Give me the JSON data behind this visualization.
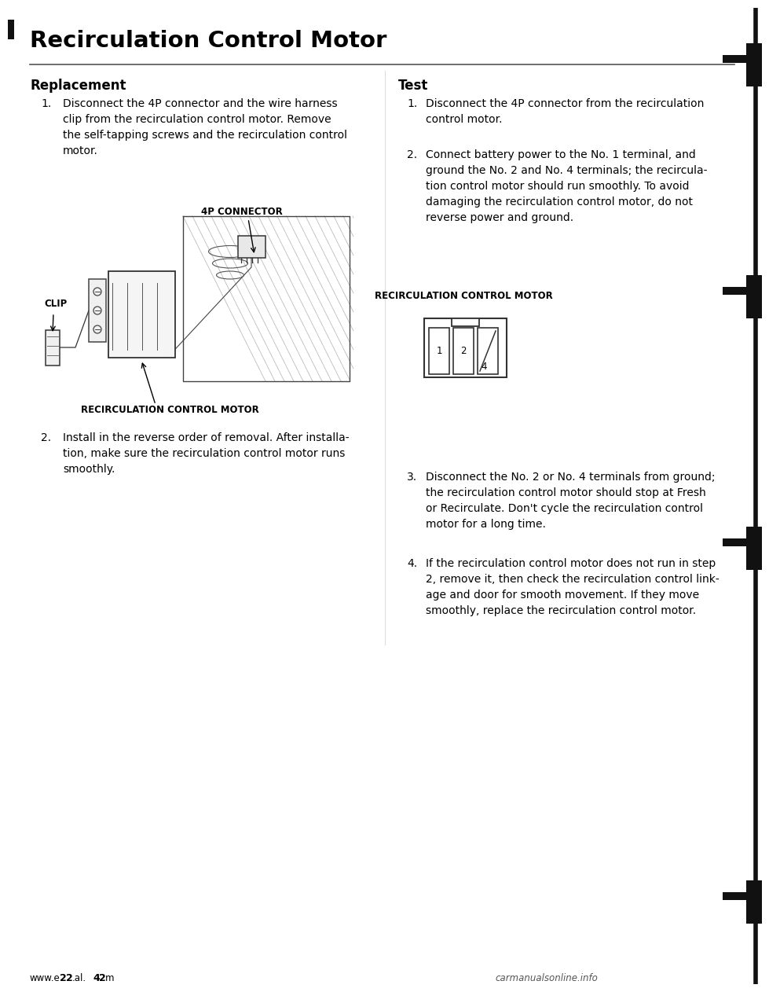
{
  "title": "Recirculation Control Motor",
  "section_left": "Replacement",
  "section_right": "Test",
  "bg_color": "#ffffff",
  "text_color": "#000000",
  "replacement_steps": [
    "Disconnect the 4P connector and the wire harness\nclip from the recirculation control motor. Remove\nthe self-tapping screws and the recirculation control\nmotor.",
    "Install in the reverse order of removal. After installa-\ntion, make sure the recirculation control motor runs\nsmoothly."
  ],
  "test_steps": [
    "Disconnect the 4P connector from the recirculation\ncontrol motor.",
    "Connect battery power to the No. 1 terminal, and\nground the No. 2 and No. 4 terminals; the recircula-\ntion control motor should run smoothly. To avoid\ndamaging the recirculation control motor, do not\nreverse power and ground.",
    "Disconnect the No. 2 or No. 4 terminals from ground;\nthe recirculation control motor should stop at Fresh\nor Recirculate. Don't cycle the recirculation control\nmotor for a long time.",
    "If the recirculation control motor does not run in step\n2, remove it, then check the recirculation control link-\nage and door for smooth movement. If they move\nsmoothly, replace the recirculation control motor."
  ],
  "diagram_label_left": "RECIRCULATION CONTROL MOTOR",
  "diagram_label_right": "RECIRCULATION CONTROL MOTOR",
  "connector_label_4p": "4P CONNECTOR",
  "connector_label_clip": "CLIP",
  "connector_terminals": [
    "1",
    "2",
    "4"
  ],
  "footer_left_prefix": "www.e",
  "footer_left_bold1": "2",
  "footer_left_bold2": "2",
  "footer_left_mid": ".al.",
  "footer_left_bold3": "4",
  "footer_left_bold4": "2",
  "footer_left_suffix": "m",
  "footer_right": "carmanualsonline.info"
}
